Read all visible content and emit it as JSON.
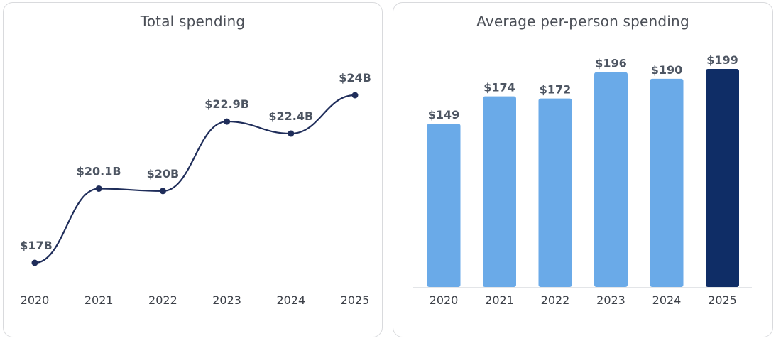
{
  "charts": {
    "left": {
      "title": "Total spending"
    },
    "right": {
      "title": "Average per-person spending"
    }
  },
  "chart_data": [
    {
      "type": "line",
      "title": "Total spending",
      "categories": [
        "2020",
        "2021",
        "2022",
        "2023",
        "2024",
        "2025"
      ],
      "values": [
        17,
        20.1,
        20,
        22.9,
        22.4,
        24
      ],
      "labels": [
        "$17B",
        "$20.1B",
        "$20B",
        "$22.9B",
        "$22.4B",
        "$24B"
      ],
      "xlabel": "",
      "ylabel": "",
      "grid": false,
      "color": "#1f2d5a"
    },
    {
      "type": "bar",
      "title": "Average per-person spending",
      "categories": [
        "2020",
        "2021",
        "2022",
        "2023",
        "2024",
        "2025"
      ],
      "values": [
        149,
        174,
        172,
        196,
        190,
        199
      ],
      "labels": [
        "$149",
        "$174",
        "$172",
        "$196",
        "$190",
        "$199"
      ],
      "xlabel": "",
      "ylabel": "",
      "grid": false,
      "ylim": [
        0,
        199
      ],
      "colors": [
        "#6aaae8",
        "#6aaae8",
        "#6aaae8",
        "#6aaae8",
        "#6aaae8",
        "#0f2d66"
      ]
    }
  ]
}
